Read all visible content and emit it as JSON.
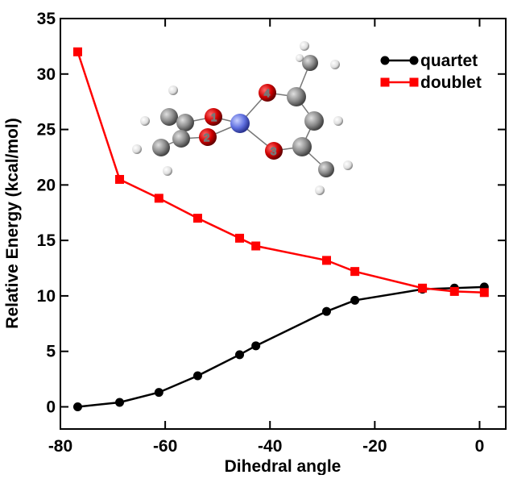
{
  "chart_data": {
    "type": "line",
    "x_label": "Dihedral angle",
    "y_label": "Relative Energy (kcal/mol)",
    "xlim": [
      -80,
      5
    ],
    "ylim": [
      -2,
      35
    ],
    "xticks": [
      -80,
      -60,
      -40,
      -20,
      0
    ],
    "yticks": [
      0,
      5,
      10,
      15,
      20,
      25,
      30,
      35
    ],
    "legend": "upper right",
    "annotations": [
      "1",
      "2",
      "3",
      "4"
    ],
    "series": [
      {
        "name": "quartet",
        "color": "#000000",
        "marker": "circle",
        "x": [
          -76.7,
          -68.7,
          -61.2,
          -53.8,
          -45.8,
          -42.7,
          -29.2,
          -23.8,
          -10.9,
          -4.8,
          0.9
        ],
        "values": [
          0,
          0.4,
          1.3,
          2.8,
          4.7,
          5.5,
          8.6,
          9.6,
          10.6,
          10.7,
          10.8
        ]
      },
      {
        "name": "doublet",
        "color": "#ff0000",
        "marker": "square",
        "x": [
          -76.7,
          -68.7,
          -61.2,
          -53.8,
          -45.8,
          -42.7,
          -29.2,
          -23.8,
          -10.9,
          -4.8,
          0.9
        ],
        "values": [
          32.0,
          20.5,
          18.8,
          17.0,
          15.2,
          14.5,
          13.2,
          12.2,
          10.7,
          10.4,
          10.3
        ]
      }
    ]
  }
}
